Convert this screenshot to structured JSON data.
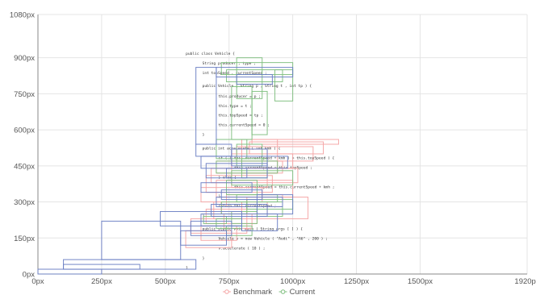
{
  "chart_data": {
    "type": "line",
    "title": "",
    "xlabel": "",
    "ylabel": "",
    "xlim": [
      0,
      1920
    ],
    "ylim": [
      0,
      1080
    ],
    "grid": true,
    "legend_position": "bottom-center",
    "x_ticks": [
      {
        "value": 0,
        "label": "0px"
      },
      {
        "value": 250,
        "label": "250px"
      },
      {
        "value": 500,
        "label": "500px"
      },
      {
        "value": 750,
        "label": "750px"
      },
      {
        "value": 1000,
        "label": "1000px"
      },
      {
        "value": 1250,
        "label": "1250px"
      },
      {
        "value": 1500,
        "label": "1500px"
      },
      {
        "value": 1920,
        "label": "1920px"
      }
    ],
    "y_ticks": [
      {
        "value": 0,
        "label": "0px"
      },
      {
        "value": 150,
        "label": "150px"
      },
      {
        "value": 300,
        "label": "300px"
      },
      {
        "value": 450,
        "label": "450px"
      },
      {
        "value": 600,
        "label": "600px"
      },
      {
        "value": 750,
        "label": "750px"
      },
      {
        "value": 900,
        "label": "900px"
      },
      {
        "value": 1080,
        "label": "1080px"
      }
    ],
    "series": [
      {
        "name": "Benchmark",
        "color": "#f4a4a4",
        "rects": [
          [
            840,
            540,
            1180,
            560
          ],
          [
            830,
            500,
            1120,
            550
          ],
          [
            780,
            470,
            1080,
            530
          ],
          [
            760,
            440,
            1000,
            500
          ],
          [
            700,
            420,
            960,
            470
          ],
          [
            680,
            380,
            1020,
            440
          ],
          [
            660,
            340,
            920,
            410
          ],
          [
            640,
            300,
            880,
            360
          ],
          [
            700,
            320,
            1000,
            390
          ],
          [
            740,
            280,
            960,
            330
          ],
          [
            720,
            250,
            900,
            300
          ],
          [
            660,
            210,
            860,
            270
          ],
          [
            600,
            170,
            820,
            230
          ],
          [
            580,
            110,
            760,
            180
          ],
          [
            640,
            140,
            780,
            200
          ],
          [
            820,
            230,
            1060,
            320
          ],
          [
            760,
            360,
            900,
            520
          ],
          [
            800,
            420,
            940,
            560
          ],
          [
            690,
            230,
            800,
            300
          ],
          [
            730,
            190,
            840,
            250
          ]
        ]
      },
      {
        "name": "Current",
        "color": "#7fbf7f",
        "rects": [
          [
            720,
            830,
            1000,
            880
          ],
          [
            740,
            800,
            960,
            850
          ],
          [
            780,
            730,
            880,
            900
          ],
          [
            930,
            720,
            1000,
            850
          ],
          [
            760,
            560,
            840,
            780
          ],
          [
            840,
            580,
            900,
            760
          ],
          [
            700,
            420,
            940,
            470
          ],
          [
            760,
            370,
            1000,
            430
          ],
          [
            740,
            330,
            860,
            390
          ],
          [
            780,
            300,
            940,
            330
          ],
          [
            820,
            270,
            1000,
            310
          ],
          [
            720,
            250,
            820,
            300
          ],
          [
            760,
            210,
            860,
            260
          ],
          [
            700,
            190,
            800,
            230
          ],
          [
            740,
            160,
            840,
            200
          ],
          [
            650,
            210,
            740,
            240
          ],
          [
            800,
            400,
            900,
            480
          ],
          [
            860,
            240,
            960,
            300
          ],
          [
            780,
            450,
            880,
            540
          ],
          [
            700,
            480,
            820,
            560
          ]
        ]
      },
      {
        "name": "",
        "color": "#6b7fc4",
        "rects": [
          [
            620,
            540,
            700,
            860
          ],
          [
            700,
            820,
            1000,
            860
          ],
          [
            780,
            790,
            920,
            830
          ],
          [
            620,
            490,
            760,
            540
          ],
          [
            640,
            440,
            980,
            490
          ],
          [
            660,
            400,
            900,
            460
          ],
          [
            640,
            340,
            840,
            380
          ],
          [
            720,
            310,
            880,
            350
          ],
          [
            700,
            280,
            960,
            320
          ],
          [
            680,
            240,
            900,
            290
          ],
          [
            640,
            200,
            800,
            250
          ],
          [
            600,
            160,
            760,
            220
          ],
          [
            560,
            120,
            740,
            180
          ],
          [
            100,
            20,
            400,
            40
          ],
          [
            100,
            20,
            620,
            60
          ],
          [
            0,
            0,
            250,
            20
          ],
          [
            250,
            60,
            560,
            220
          ],
          [
            480,
            200,
            800,
            260
          ],
          [
            800,
            180,
            940,
            250
          ],
          [
            860,
            250,
            1000,
            330
          ],
          [
            740,
            400,
            820,
            440
          ],
          [
            760,
            450,
            900,
            520
          ]
        ]
      }
    ],
    "code_lines": [
      {
        "x": 580,
        "y": 912,
        "text": "public class Vehicle {"
      },
      {
        "x": 645,
        "y": 872,
        "text": "String producer , type ;"
      },
      {
        "x": 645,
        "y": 832,
        "text": "int topSpeed , currentSpeed ;"
      },
      {
        "x": 645,
        "y": 778,
        "text": "public Vehicle ( String p , String t , int tp ) {"
      },
      {
        "x": 708,
        "y": 735,
        "text": "this.producer = p ;"
      },
      {
        "x": 708,
        "y": 695,
        "text": "this.type = t ;"
      },
      {
        "x": 708,
        "y": 655,
        "text": "this.topSpeed = tp ;"
      },
      {
        "x": 708,
        "y": 615,
        "text": "this.currentSpeed = 0 ;"
      },
      {
        "x": 645,
        "y": 575,
        "text": "}"
      },
      {
        "x": 645,
        "y": 518,
        "text": "public int accelerate ( int kmh ) {"
      },
      {
        "x": 708,
        "y": 478,
        "text": "if ( ( this.currentSpeed + kmh ) > this.topSpeed ) {"
      },
      {
        "x": 770,
        "y": 438,
        "text": "this.currentSpeed = this.topSpeed ;"
      },
      {
        "x": 708,
        "y": 398,
        "text": "} else {"
      },
      {
        "x": 770,
        "y": 358,
        "text": "this.currentSpeed = this.currentSpeed + kmh ;"
      },
      {
        "x": 708,
        "y": 318,
        "text": "}"
      },
      {
        "x": 708,
        "y": 278,
        "text": "return this.currentSpeed ;"
      },
      {
        "x": 645,
        "y": 238,
        "text": "}"
      },
      {
        "x": 645,
        "y": 182,
        "text": "public static void main ( String args [ ] ) {"
      },
      {
        "x": 708,
        "y": 142,
        "text": "Vehicle v = new Vehicle ( \"Audi\" , \"A6\" , 200 ) ;"
      },
      {
        "x": 708,
        "y": 102,
        "text": "v.accelerate ( 10 ) ;"
      },
      {
        "x": 645,
        "y": 60,
        "text": "}"
      },
      {
        "x": 580,
        "y": 22,
        "text": "}"
      }
    ]
  }
}
